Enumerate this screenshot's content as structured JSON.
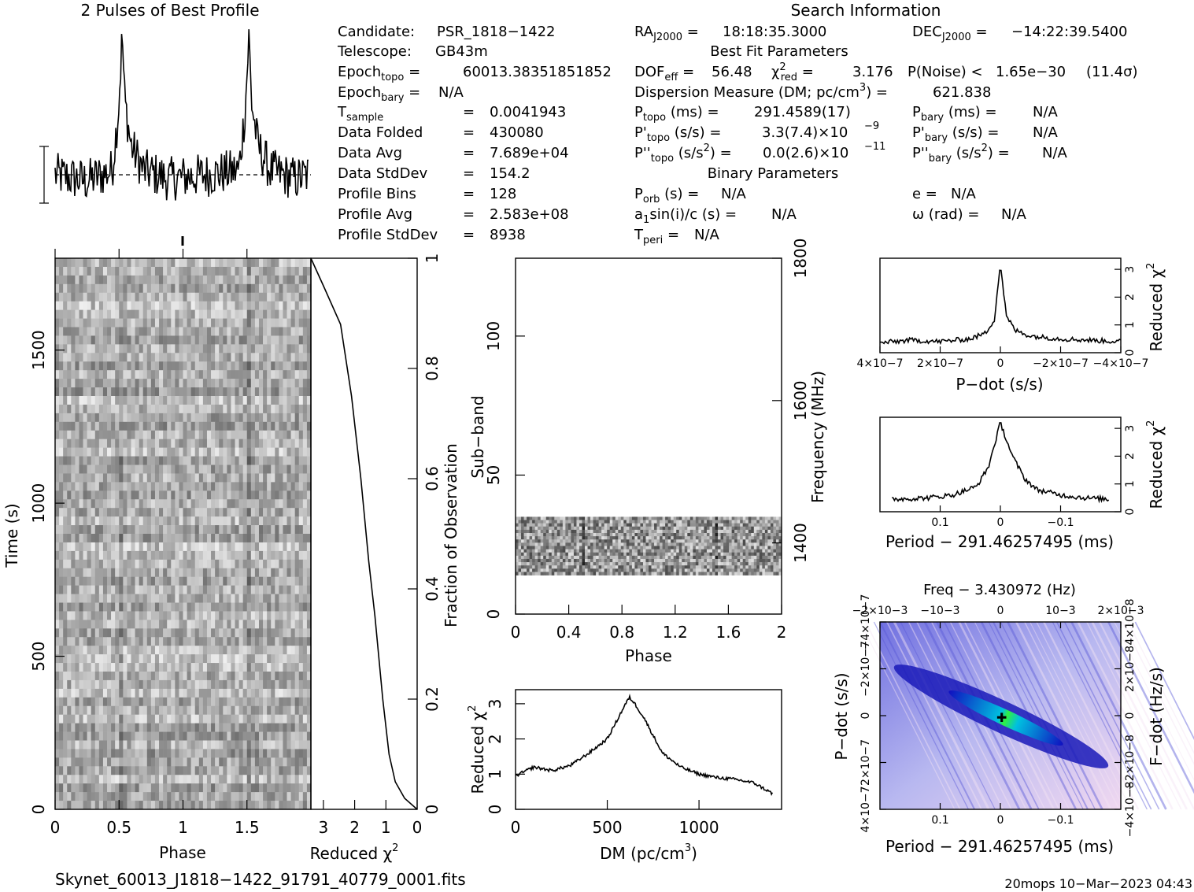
{
  "profile_title": "2 Pulses of Best Profile",
  "search_title": "Search Information",
  "info": {
    "candidate_label": "Candidate:",
    "candidate": "PSR_1818−1422",
    "telescope_label": "Telescope:",
    "telescope": "GB43m",
    "epoch_topo": "60013.38351851852",
    "epoch_bary": "N/A",
    "tsample": "0.0041943",
    "data_folded": "430080",
    "data_avg": "7.689e+04",
    "data_stddev": "154.2",
    "profile_bins": "128",
    "profile_avg": "2.583e+08",
    "profile_stddev": "8938"
  },
  "search": {
    "ra": "18:18:35.3000",
    "dec": "−14:22:39.5400",
    "best_fit_title": "Best Fit Parameters",
    "dof_eff": "56.48",
    "chi2_red": "3.176",
    "p_noise": "1.65e−30",
    "sigma": "(11.4σ)",
    "dm": "621.838",
    "p_topo": "291.4589(17)",
    "p_bary": "N/A",
    "pd_topo": "3.3(7.4)×10",
    "pd_topo_exp": "−9",
    "pd_bary": "N/A",
    "pdd_topo": "0.0(2.6)×10",
    "pdd_topo_exp": "−11",
    "pdd_bary": "N/A",
    "binary_title": "Binary Parameters",
    "p_orb": "N/A",
    "e": "N/A",
    "a1sini": "N/A",
    "omega": "N/A",
    "t_peri": "N/A"
  },
  "footer": {
    "filename": "Skynet_60013_J1818−1422_91791_40779_0001.fits",
    "stamp": "20mops 10−Mar−2023 04:43"
  },
  "colors": {
    "ink": "#000000",
    "map_low": "#e8d0ea",
    "map_mid": "#4a4ae0",
    "map_high": "#00e060"
  },
  "chart_data": [
    {
      "type": "line",
      "title": "2 Pulses of Best Profile",
      "x": [
        0,
        0.25,
        0.45,
        0.5,
        0.53,
        0.55,
        0.6,
        0.7,
        0.9,
        1.2,
        1.45,
        1.5,
        1.53,
        1.55,
        1.6,
        1.7,
        1.9,
        2.0
      ],
      "y": [
        0,
        -0.15,
        0.1,
        1.6,
        3.4,
        1.8,
        0.7,
        0.1,
        -0.1,
        0.0,
        0.1,
        1.6,
        3.4,
        1.8,
        0.7,
        0.1,
        -0.1,
        0.0
      ],
      "xlim": [
        0,
        2
      ]
    },
    {
      "type": "heatmap",
      "xlabel": "Phase",
      "ylabel": "Time (s)",
      "x_ticks": [
        "0",
        "0.5",
        "1",
        "1.5"
      ],
      "y_ticks": [
        "0",
        "500",
        "1000",
        "1500"
      ],
      "xlim": [
        0,
        2
      ],
      "ylim": [
        0,
        1800
      ]
    },
    {
      "type": "line",
      "xlabel": "Reduced χ2",
      "ylabel": "Fraction of Observation",
      "x_ticks": [
        "3",
        "2",
        "1",
        "0"
      ],
      "y_ticks": [
        "0",
        "0.2",
        "0.4",
        "0.6",
        "0.8",
        "1"
      ],
      "x": [
        0.0,
        0.4,
        0.7,
        0.9,
        1.1,
        1.35,
        1.55,
        1.8,
        2.1,
        2.45,
        3.0,
        3.4
      ],
      "y": [
        0.0,
        0.02,
        0.05,
        0.1,
        0.2,
        0.35,
        0.45,
        0.6,
        0.75,
        0.88,
        0.95,
        1.0
      ],
      "xlim": [
        3.4,
        0
      ],
      "ylim": [
        0,
        1
      ]
    },
    {
      "type": "heatmap",
      "xlabel": "Phase",
      "ylabel": "Sub-band",
      "y2label": "Frequency (MHz)",
      "x_ticks": [
        "0",
        "0.4",
        "0.8",
        "1.2",
        "1.6",
        "2"
      ],
      "y_ticks": [
        "0",
        "50",
        "100"
      ],
      "y2_ticks": [
        "1400",
        "1600",
        "1800"
      ],
      "xlim": [
        0,
        2
      ],
      "ylim": [
        0,
        128
      ],
      "filled_subbands": [
        14,
        35
      ]
    },
    {
      "type": "line",
      "xlabel": "DM (pc/cm3)",
      "ylabel": "Reduced χ2",
      "x_ticks": [
        "0",
        "500",
        "1000"
      ],
      "y_ticks": [
        "0",
        "1",
        "2",
        "3"
      ],
      "x": [
        0,
        100,
        200,
        300,
        400,
        500,
        550,
        600,
        622,
        650,
        700,
        750,
        800,
        900,
        1000,
        1100,
        1200,
        1300,
        1400
      ],
      "y": [
        0.95,
        1.2,
        1.1,
        1.25,
        1.6,
        2.0,
        2.5,
        3.0,
        3.18,
        3.0,
        2.6,
        2.1,
        1.6,
        1.2,
        1.0,
        0.9,
        0.85,
        0.75,
        0.45
      ],
      "xlim": [
        0,
        1450
      ],
      "ylim": [
        0,
        3.4
      ]
    },
    {
      "type": "line",
      "xlabel": "P−dot (s/s)",
      "ylabel": "Reduced χ2",
      "x_ticks": [
        "4×10−7",
        "2×10−7",
        "0",
        "−2×10−7",
        "−4×10−7"
      ],
      "y_ticks": [
        "0",
        "1",
        "2",
        "3"
      ],
      "x": [
        4e-07,
        3e-07,
        2e-07,
        1e-07,
        5e-08,
        2e-08,
        0,
        -2e-08,
        -5e-08,
        -1e-07,
        -2e-07,
        -3e-07,
        -4e-07
      ],
      "y": [
        0.35,
        0.45,
        0.4,
        0.5,
        0.7,
        1.2,
        3.2,
        1.3,
        0.8,
        0.6,
        0.5,
        0.45,
        0.4
      ],
      "xlim": [
        4e-07,
        -4e-07
      ],
      "ylim": [
        0,
        3.4
      ]
    },
    {
      "type": "line",
      "xlabel": "Period − 291.46257495 (ms)",
      "ylabel": "Reduced χ2",
      "x_ticks": [
        "0.1",
        "0",
        "−0.1"
      ],
      "y_ticks": [
        "0",
        "1",
        "2",
        "3"
      ],
      "x": [
        0.18,
        0.12,
        0.08,
        0.04,
        0.02,
        0.0,
        -0.02,
        -0.04,
        -0.06,
        -0.1,
        -0.14,
        -0.18
      ],
      "y": [
        0.45,
        0.5,
        0.6,
        0.9,
        1.6,
        3.2,
        2.0,
        1.2,
        0.8,
        0.6,
        0.5,
        0.45
      ],
      "xlim": [
        0.2,
        -0.2
      ],
      "ylim": [
        0,
        3.4
      ]
    },
    {
      "type": "heatmap",
      "title": "Freq − 3.430972 (Hz)",
      "xlabel": "Period − 291.46257495 (ms)",
      "ylabel": "P−dot (s/s)",
      "y2label": "F−dot (Hz/s)",
      "x_ticks": [
        "0.1",
        "0",
        "−0.1"
      ],
      "x2_ticks": [
        "−2×10−3",
        "−10−3",
        "0",
        "10−3",
        "2×10−3"
      ],
      "y_ticks": [
        "4×10−7",
        "2×10−7",
        "0",
        "−2×10−7",
        "−4×10−7"
      ],
      "y2_ticks": [
        "−4×10−8",
        "−2×10−8",
        "0",
        "2×10−8",
        "4×10−8"
      ],
      "peak": [
        0,
        0
      ]
    }
  ]
}
